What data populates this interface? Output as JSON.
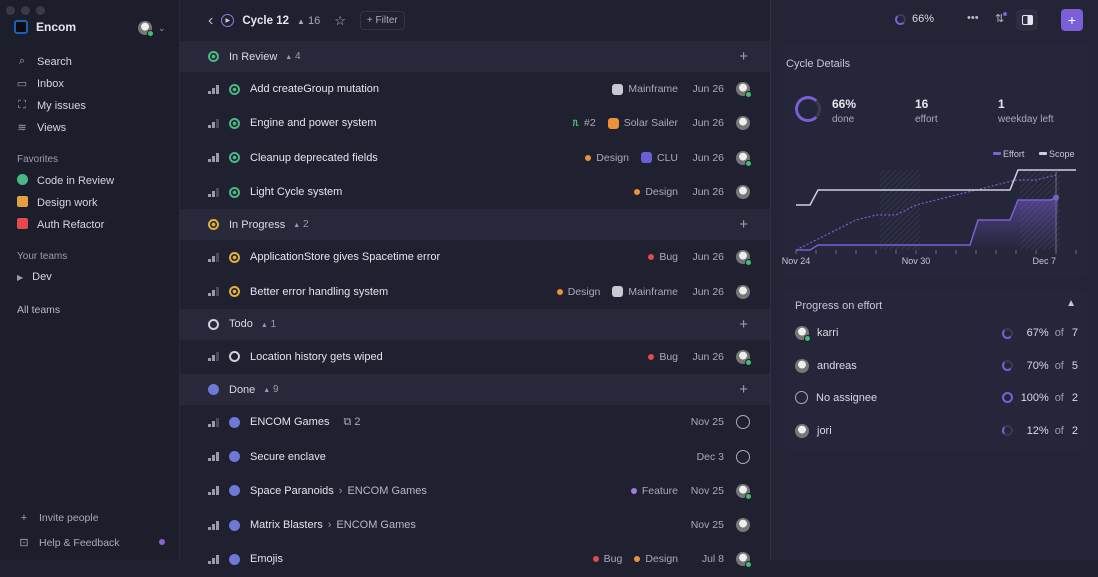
{
  "sidebar": {
    "workspace": "Encom",
    "nav": [
      {
        "label": "Search",
        "icon": "search-icon"
      },
      {
        "label": "Inbox",
        "icon": "inbox-icon"
      },
      {
        "label": "My issues",
        "icon": "my-issues-icon"
      },
      {
        "label": "Views",
        "icon": "views-icon"
      }
    ],
    "favorites_title": "Favorites",
    "favorites": [
      {
        "label": "Code in Review",
        "color": "#4cb782"
      },
      {
        "label": "Design work",
        "color": "#e2a03f"
      },
      {
        "label": "Auth Refactor",
        "color": "#e5484d"
      }
    ],
    "teams_title": "Your teams",
    "teams": [
      {
        "label": "Dev"
      }
    ],
    "all_teams": "All teams",
    "invite": "Invite people",
    "help": "Help & Feedback"
  },
  "header": {
    "title": "Cycle 12",
    "count": "16",
    "filter": "+ Filter",
    "progress": "66%"
  },
  "groups": [
    {
      "name": "In Review",
      "count": "4",
      "status": "in-review",
      "color": "#4cb782",
      "issues": [
        {
          "title": "Add createGroup mutation",
          "priority": 3,
          "labels": [],
          "project": {
            "name": "Mainframe",
            "color": "#c7c8d2"
          },
          "date": "Jun 26"
        },
        {
          "title": "Engine and power system",
          "priority": 2,
          "pr": "#2",
          "labels": [],
          "project": {
            "name": "Solar Sailer",
            "color": "#e8923c"
          },
          "date": "Jun 26"
        },
        {
          "title": "Cleanup deprecated fields",
          "priority": 3,
          "labels": [
            {
              "name": "Design",
              "color": "#e8923c"
            }
          ],
          "project": {
            "name": "CLU",
            "color": "#6a5fd6"
          },
          "date": "Jun 26"
        },
        {
          "title": "Light Cycle system",
          "priority": 2,
          "labels": [
            {
              "name": "Design",
              "color": "#e8923c"
            }
          ],
          "date": "Jun 26"
        }
      ]
    },
    {
      "name": "In Progress",
      "count": "2",
      "status": "in-progress",
      "color": "#e2b13c",
      "issues": [
        {
          "title": "ApplicationStore gives Spacetime error",
          "priority": 2,
          "labels": [
            {
              "name": "Bug",
              "color": "#e5484d"
            }
          ],
          "date": "Jun 26"
        },
        {
          "title": "Better error handling system",
          "priority": 2,
          "labels": [
            {
              "name": "Design",
              "color": "#e8923c"
            }
          ],
          "project": {
            "name": "Mainframe",
            "color": "#c7c8d2"
          },
          "date": "Jun 26"
        }
      ]
    },
    {
      "name": "Todo",
      "count": "1",
      "status": "todo",
      "color": "#d0d1da",
      "issues": [
        {
          "title": "Location history gets wiped",
          "priority": 2,
          "labels": [
            {
              "name": "Bug",
              "color": "#e5484d"
            }
          ],
          "date": "Jun 26"
        }
      ]
    },
    {
      "name": "Done",
      "count": "9",
      "status": "done",
      "color": "#6e79d6",
      "issues": [
        {
          "title": "ENCOM Games",
          "priority": 2,
          "subissues": "2",
          "labels": [],
          "date": "Nov 25"
        },
        {
          "title": "Secure enclave",
          "priority": 3,
          "labels": [],
          "date": "Dec 3"
        },
        {
          "title": "Space Paranoids",
          "parent": "ENCOM Games",
          "priority": 3,
          "labels": [
            {
              "name": "Feature",
              "color": "#a07be0"
            }
          ],
          "date": "Nov 25"
        },
        {
          "title": "Matrix Blasters",
          "parent": "ENCOM Games",
          "priority": 3,
          "labels": [],
          "date": "Nov 25"
        },
        {
          "title": "Emojis",
          "priority": 3,
          "labels": [
            {
              "name": "Bug",
              "color": "#e5484d"
            },
            {
              "name": "Design",
              "color": "#e8923c"
            }
          ],
          "date": "Jul 8"
        }
      ]
    }
  ],
  "panel": {
    "title": "Cycle Details",
    "done_pct": "66%",
    "done_label": "done",
    "effort": "16",
    "effort_label": "effort",
    "days": "1",
    "days_label": "weekday left",
    "progress_title": "Progress on effort",
    "people": [
      {
        "name": "karri",
        "pct": "67%",
        "of": "of",
        "total": "7"
      },
      {
        "name": "andreas",
        "pct": "70%",
        "of": "of",
        "total": "5"
      },
      {
        "name": "No assignee",
        "pct": "100%",
        "of": "of",
        "total": "2"
      },
      {
        "name": "jori",
        "pct": "12%",
        "of": "of",
        "total": "2"
      }
    ]
  },
  "chart_data": {
    "type": "line",
    "x": [
      "Nov 24",
      "Nov 25",
      "Nov 26",
      "Nov 27",
      "Nov 28",
      "Nov 29",
      "Nov 30",
      "Dec 1",
      "Dec 2",
      "Dec 3",
      "Dec 4",
      "Dec 5",
      "Dec 6",
      "Dec 7"
    ],
    "x_tick_labels": [
      "Nov 24",
      "Nov 30",
      "Dec 7"
    ],
    "series": [
      {
        "name": "Effort",
        "color": "#7b5fd6",
        "values": [
          0,
          1,
          1,
          1,
          1,
          1,
          1,
          1,
          1,
          6,
          6,
          10,
          10,
          10.5
        ]
      },
      {
        "name": "Scope",
        "color": "#cfd0da",
        "values": [
          9,
          12,
          12,
          12,
          12,
          12,
          12,
          12,
          12,
          12,
          12,
          16,
          16,
          16
        ]
      }
    ],
    "projection": [
      0,
      2,
      4,
      6,
      7,
      7,
      9,
      10,
      11,
      12,
      13,
      14,
      14,
      15
    ],
    "ylim": [
      0,
      17
    ],
    "legend": "top-right"
  }
}
